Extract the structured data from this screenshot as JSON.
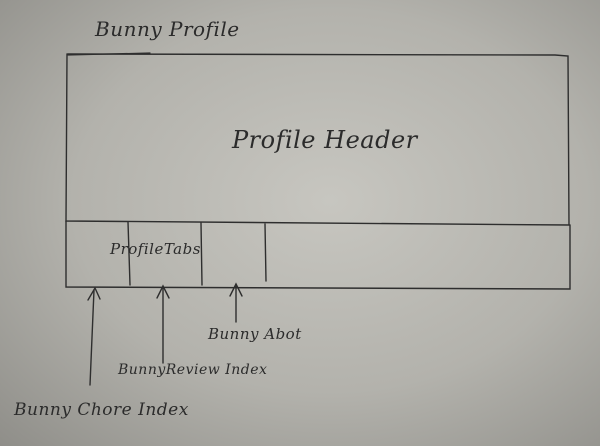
{
  "page_title": "Bunny Profile",
  "profile_header": {
    "label": "Profile Header"
  },
  "profile_tabs": {
    "label": "ProfileTabs",
    "tabs": [
      {
        "label": "Bunny Chore Index"
      },
      {
        "label": "BunnyReview Index"
      },
      {
        "label": "Bunny Abot"
      }
    ]
  }
}
